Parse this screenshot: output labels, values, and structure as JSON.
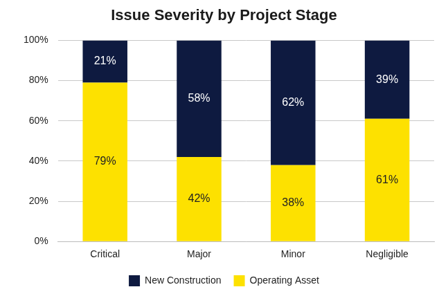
{
  "chart_data": {
    "type": "bar",
    "title": "Issue Severity by Project Stage",
    "categories": [
      "Critical",
      "Major",
      "Minor",
      "Negligible"
    ],
    "series": [
      {
        "name": "Operating Asset",
        "color": "#fde100",
        "values": [
          79,
          42,
          38,
          61
        ],
        "value_labels": [
          "79%",
          "42%",
          "38%",
          "61%"
        ]
      },
      {
        "name": "New Construction",
        "color": "#0e1a40",
        "values": [
          21,
          58,
          62,
          39
        ],
        "value_labels": [
          "21%",
          "58%",
          "62%",
          "39%"
        ]
      }
    ],
    "stacked": true,
    "data_labels": true,
    "grid": true,
    "legend": "bottom",
    "ylim": [
      0,
      100
    ],
    "yticks": [
      {
        "value": 0,
        "label": "0%"
      },
      {
        "value": 20,
        "label": "20%"
      },
      {
        "value": 40,
        "label": "40%"
      },
      {
        "value": 60,
        "label": "60%"
      },
      {
        "value": 80,
        "label": "80%"
      },
      {
        "value": 100,
        "label": "100%"
      }
    ]
  }
}
